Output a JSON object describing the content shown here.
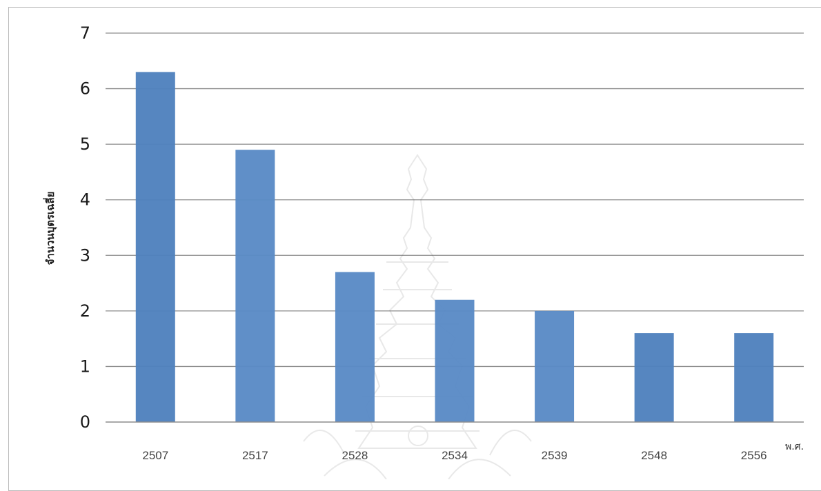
{
  "chart_data": {
    "type": "bar",
    "categories": [
      "2507",
      "2517",
      "2528",
      "2534",
      "2539",
      "2548",
      "2556"
    ],
    "values": [
      6.3,
      4.9,
      2.7,
      2.2,
      2.0,
      1.6,
      1.6
    ],
    "ylim": [
      0,
      7
    ],
    "yticks": [
      "0",
      "1",
      "2",
      "3",
      "4",
      "5",
      "6",
      "7"
    ],
    "ylabel": "จำนวนบุตรเฉลี่ย",
    "xlabel": "พ.ศ.",
    "grid": true,
    "bar_colors": [
      "#4f81bd",
      "#5a8ac6",
      "#5a8ac6",
      "#5a8ac6",
      "#5a8ac6",
      "#4f81bd",
      "#4f81bd"
    ],
    "grid_color": "#8c8c8c"
  }
}
